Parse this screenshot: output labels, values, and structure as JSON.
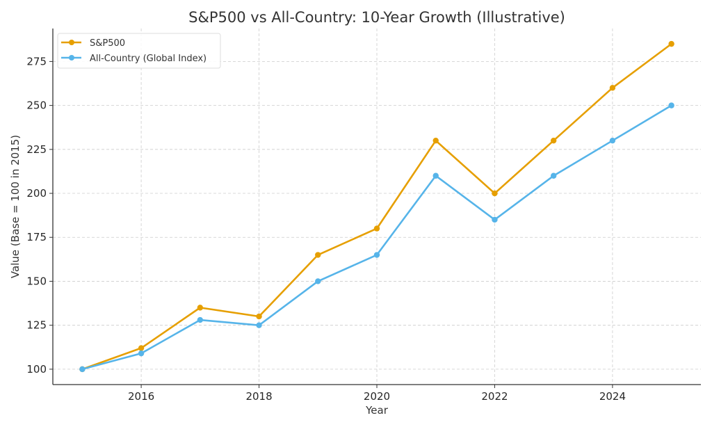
{
  "chart_data": {
    "type": "line",
    "title": "S&P500 vs All-Country: 10-Year Growth (Illustrative)",
    "xlabel": "Year",
    "ylabel": "Value (Base = 100 in 2015)",
    "x": [
      2015,
      2016,
      2017,
      2018,
      2019,
      2020,
      2021,
      2022,
      2023,
      2024,
      2025
    ],
    "xticks": [
      2016,
      2018,
      2020,
      2022,
      2024
    ],
    "yticks": [
      100,
      125,
      150,
      175,
      200,
      225,
      250,
      275
    ],
    "xlim": [
      2014.5,
      2025.5
    ],
    "ylim": [
      91.25,
      293.75
    ],
    "grid": true,
    "legend_position": "top-left",
    "series": [
      {
        "name": "S&P500",
        "color": "#E69F00",
        "values": [
          100,
          112,
          135,
          130,
          165,
          180,
          230,
          200,
          230,
          260,
          285
        ]
      },
      {
        "name": "All-Country (Global Index)",
        "color": "#56B4E9",
        "values": [
          100,
          109,
          128,
          125,
          150,
          165,
          210,
          185,
          210,
          230,
          250
        ]
      }
    ]
  }
}
